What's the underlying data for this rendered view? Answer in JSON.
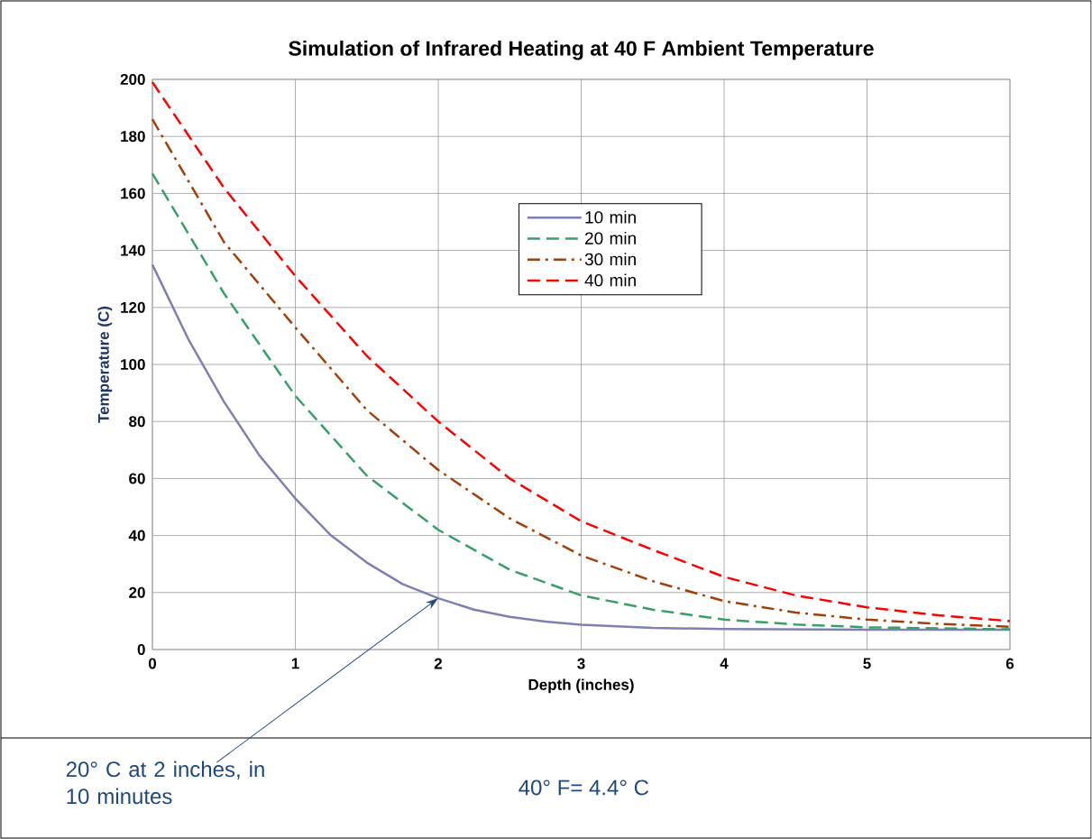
{
  "chart_data": {
    "type": "line",
    "title": "Simulation of Infrared Heating at 40 F Ambient Temperature",
    "xlabel": "Depth (inches)",
    "ylabel": "Temperature (C)",
    "xlim": [
      0,
      6
    ],
    "ylim": [
      0,
      200
    ],
    "xticks": [
      0,
      1,
      2,
      3,
      4,
      5,
      6
    ],
    "yticks": [
      0,
      20,
      40,
      60,
      80,
      100,
      120,
      140,
      160,
      180,
      200
    ],
    "grid": true,
    "legend": "top right",
    "series": [
      {
        "name": "10 min",
        "color": "#7f7fb4",
        "line_style": "solid",
        "x": [
          0,
          0.25,
          0.5,
          0.75,
          1,
          1.25,
          1.5,
          1.75,
          2,
          2.25,
          2.5,
          2.75,
          3,
          3.5,
          4,
          5,
          6
        ],
        "values": [
          135,
          109,
          87,
          68,
          53,
          40,
          30.5,
          23,
          18,
          14,
          11.5,
          9.8,
          8.7,
          7.6,
          7.2,
          7,
          7
        ]
      },
      {
        "name": "20 min",
        "color": "#3a9e6b",
        "line_style": "dashed",
        "x": [
          0,
          0.5,
          1,
          1.5,
          2,
          2.5,
          3,
          3.5,
          4,
          4.5,
          5,
          6
        ],
        "values": [
          167,
          125,
          89,
          61,
          42,
          28,
          19,
          14,
          10.5,
          8.8,
          7.8,
          7.1
        ]
      },
      {
        "name": "30 min",
        "color": "#a0400a",
        "line_style": "dashdot",
        "x": [
          0,
          0.5,
          1,
          1.5,
          2,
          2.5,
          3,
          3.5,
          4,
          4.5,
          5,
          5.5,
          6
        ],
        "values": [
          186,
          143,
          113,
          84,
          63,
          46,
          33,
          24,
          17,
          13,
          10.5,
          9,
          8
        ]
      },
      {
        "name": "40 min",
        "color": "#ff0000",
        "line_style": "dashed",
        "x": [
          0,
          0.5,
          1,
          1.5,
          2,
          2.5,
          3,
          3.5,
          4,
          4.5,
          5,
          5.5,
          6
        ],
        "values": [
          199,
          162,
          131,
          103,
          80,
          60,
          45,
          35,
          25.5,
          19,
          14.8,
          12,
          10
        ]
      }
    ],
    "annotations": [
      {
        "text": "20° C at 2 inches, in 10 minutes",
        "x": 2,
        "y": 18
      },
      "40° F= 4.4° C"
    ]
  }
}
